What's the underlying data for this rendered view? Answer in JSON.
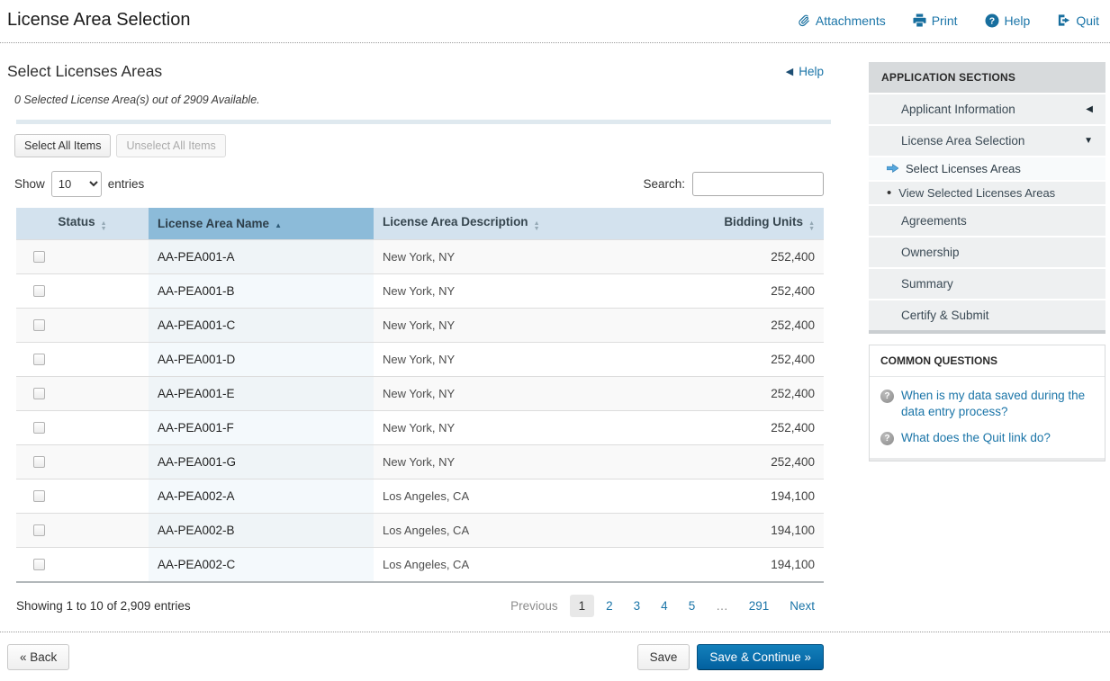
{
  "page": {
    "title": "License Area Selection"
  },
  "header_links": [
    {
      "label": "Attachments",
      "icon": "paperclip-icon"
    },
    {
      "label": "Print",
      "icon": "printer-icon"
    },
    {
      "label": "Help",
      "icon": "question-circle-icon"
    },
    {
      "label": "Quit",
      "icon": "sign-out-icon"
    }
  ],
  "section": {
    "heading": "Select Licenses Areas",
    "help_label": "Help",
    "note": "0 Selected License Area(s) out of 2909 Available."
  },
  "toolbar": {
    "select_all_label": "Select All Items",
    "unselect_all_label": "Unselect All Items"
  },
  "table_controls": {
    "show_label": "Show",
    "page_size": "10",
    "entries_label": "entries",
    "search_label": "Search:",
    "search_value": ""
  },
  "table": {
    "columns": [
      "Status",
      "License Area Name",
      "License Area Description",
      "Bidding Units"
    ],
    "sorted_column": "License Area Name",
    "sort_direction": "ascending",
    "rows": [
      {
        "name": "AA-PEA001-A",
        "description": "New York, NY",
        "bidding_units": "252,400"
      },
      {
        "name": "AA-PEA001-B",
        "description": "New York, NY",
        "bidding_units": "252,400"
      },
      {
        "name": "AA-PEA001-C",
        "description": "New York, NY",
        "bidding_units": "252,400"
      },
      {
        "name": "AA-PEA001-D",
        "description": "New York, NY",
        "bidding_units": "252,400"
      },
      {
        "name": "AA-PEA001-E",
        "description": "New York, NY",
        "bidding_units": "252,400"
      },
      {
        "name": "AA-PEA001-F",
        "description": "New York, NY",
        "bidding_units": "252,400"
      },
      {
        "name": "AA-PEA001-G",
        "description": "New York, NY",
        "bidding_units": "252,400"
      },
      {
        "name": "AA-PEA002-A",
        "description": "Los Angeles, CA",
        "bidding_units": "194,100"
      },
      {
        "name": "AA-PEA002-B",
        "description": "Los Angeles, CA",
        "bidding_units": "194,100"
      },
      {
        "name": "AA-PEA002-C",
        "description": "Los Angeles, CA",
        "bidding_units": "194,100"
      }
    ]
  },
  "pagination": {
    "summary": "Showing 1 to 10 of 2,909 entries",
    "previous_label": "Previous",
    "pages": [
      "1",
      "2",
      "3",
      "4",
      "5",
      "…",
      "291"
    ],
    "current_page": "1",
    "next_label": "Next"
  },
  "footer_buttons": {
    "back_label": "« Back",
    "save_label": "Save",
    "save_continue_label": "Save & Continue »"
  },
  "sidebar": {
    "sections_title": "APPLICATION SECTIONS",
    "items": [
      {
        "label": "Applicant Information",
        "type": "main",
        "caret": "left"
      },
      {
        "label": "License Area Selection",
        "type": "main",
        "caret": "down"
      },
      {
        "label": "Select Licenses Areas",
        "type": "sub",
        "active": true
      },
      {
        "label": "View Selected Licenses Areas",
        "type": "sub",
        "active": false
      },
      {
        "label": "Agreements",
        "type": "main"
      },
      {
        "label": "Ownership",
        "type": "main"
      },
      {
        "label": "Summary",
        "type": "main"
      },
      {
        "label": "Certify & Submit",
        "type": "main"
      }
    ],
    "questions_title": "COMMON QUESTIONS",
    "questions": [
      "When is my data saved during the data entry process?",
      "What does the Quit link do?"
    ]
  },
  "colors": {
    "link_blue": "#1b75a8",
    "icon_blue": "#176e9e",
    "table_header_blue": "#d3e2ee",
    "sorted_header_blue": "#8cbbd9",
    "primary_button_blue": "#02609f"
  }
}
